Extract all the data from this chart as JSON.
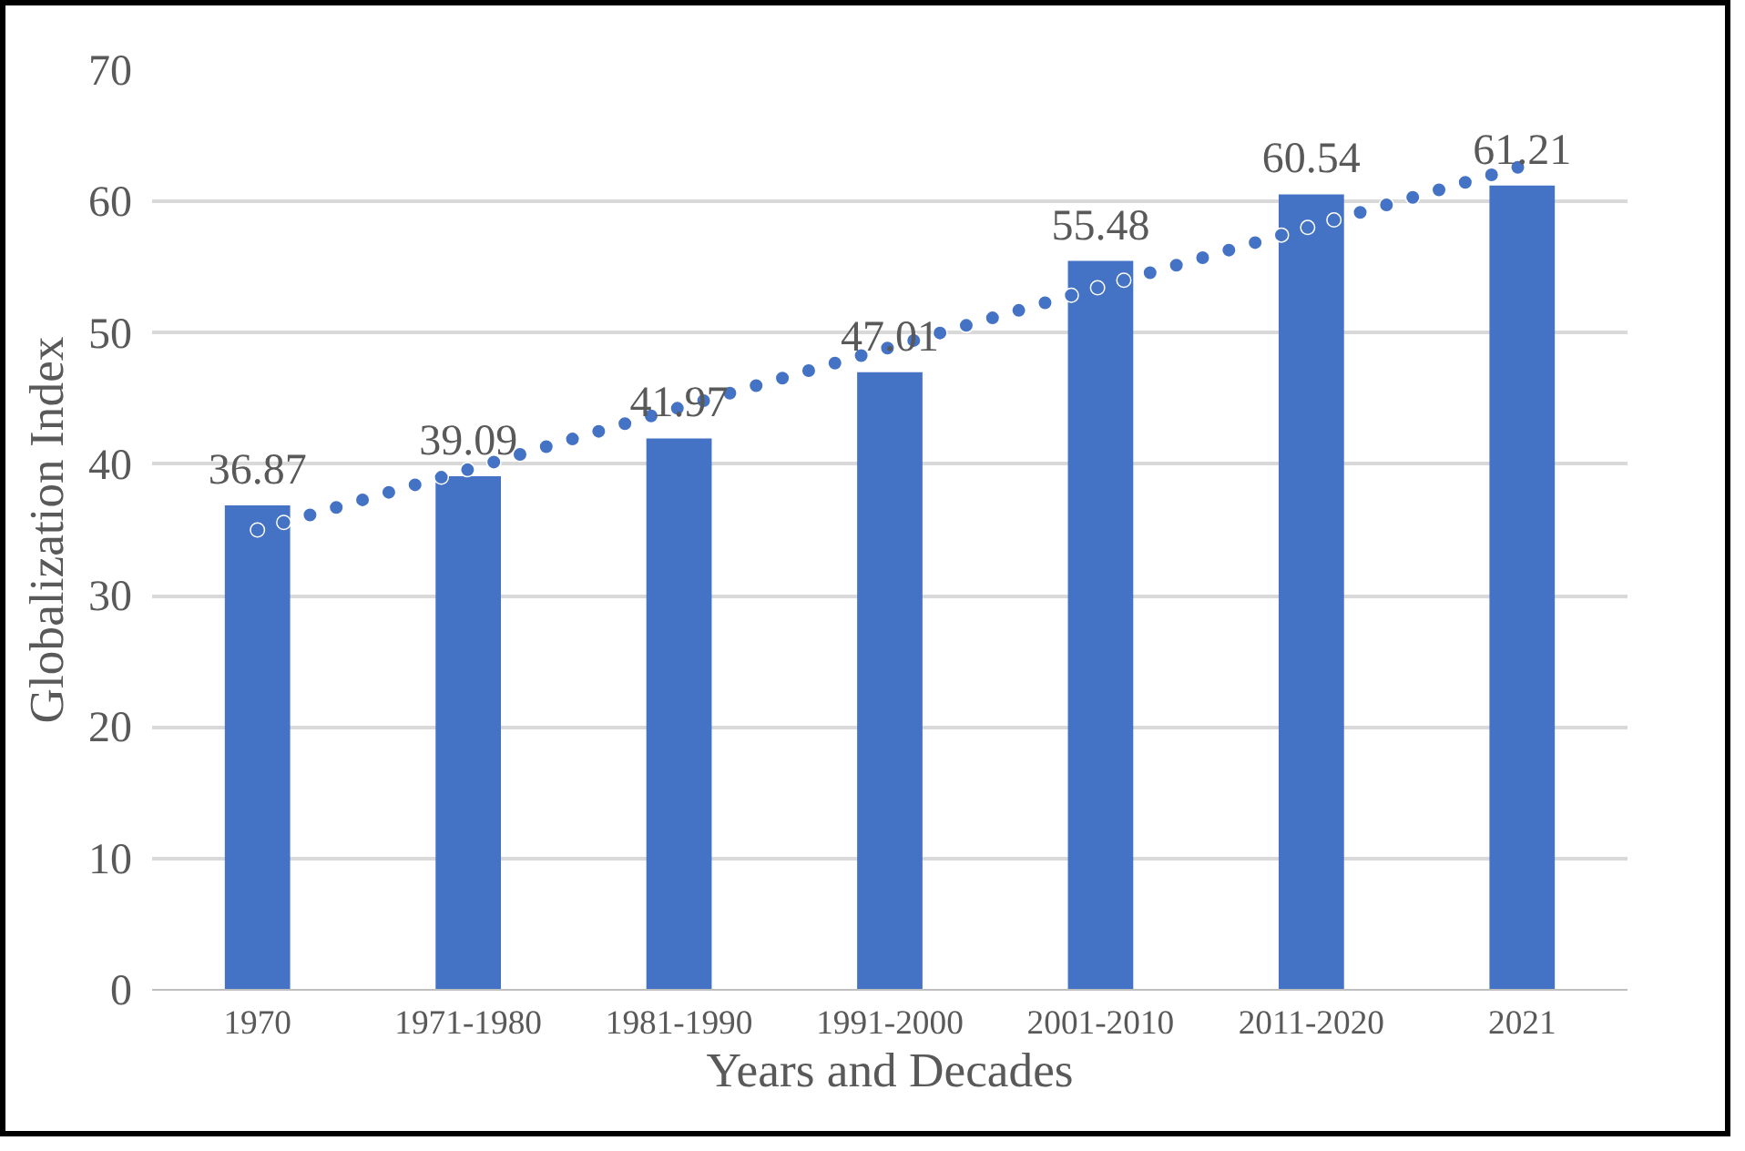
{
  "chart_data": {
    "type": "bar",
    "xlabel": "Years and Decades",
    "ylabel": "Globalization Index",
    "categories": [
      "1970",
      "1971-1980",
      "1981-1990",
      "1991-2000",
      "2001-2010",
      "2011-2020",
      "2021"
    ],
    "series": [
      {
        "color": "#4472c4",
        "values": [
          36.87,
          39.09,
          41.97,
          47.01,
          55.48,
          60.54,
          61.21
        ],
        "value_labels": [
          "36.87",
          "39.09",
          "41.97",
          "47.01",
          "55.48",
          "60.54",
          "61.21"
        ]
      },
      {
        "type": "line",
        "color": "#4472c4",
        "line_style": "dotted",
        "values": [
          35.0,
          39.6,
          44.3,
          48.9,
          53.5,
          58.1,
          62.7
        ]
      }
    ],
    "ylim": [
      0,
      70
    ],
    "yticks": [
      0,
      10,
      20,
      30,
      40,
      50,
      60,
      70
    ],
    "grid": "y"
  }
}
